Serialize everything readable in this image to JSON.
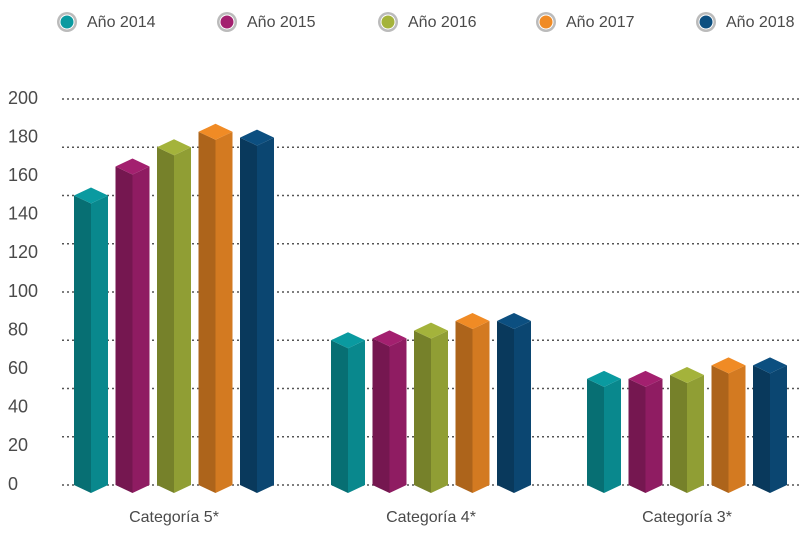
{
  "chart_data": {
    "type": "bar3d",
    "categories": [
      "Categoría 5*",
      "Categoría 4*",
      "Categoría 3*"
    ],
    "series": [
      {
        "name": "Año 2014",
        "color": "#0a9aa0",
        "values": [
          150,
          75,
          55
        ]
      },
      {
        "name": "Año 2015",
        "color": "#a3206f",
        "values": [
          165,
          76,
          55
        ]
      },
      {
        "name": "Año 2016",
        "color": "#a4b33b",
        "values": [
          175,
          80,
          57
        ]
      },
      {
        "name": "Año 2017",
        "color": "#f08b25",
        "values": [
          183,
          85,
          62
        ]
      },
      {
        "name": "Año 2018",
        "color": "#0c4f80",
        "values": [
          180,
          85,
          62
        ]
      }
    ],
    "ylim": [
      0,
      200
    ],
    "yticks": [
      0,
      20,
      40,
      60,
      80,
      100,
      120,
      140,
      160,
      180,
      200
    ],
    "grid_lines": [
      0,
      25,
      50,
      75,
      100,
      125,
      150,
      175,
      200
    ],
    "grid": true,
    "legend": "top"
  }
}
